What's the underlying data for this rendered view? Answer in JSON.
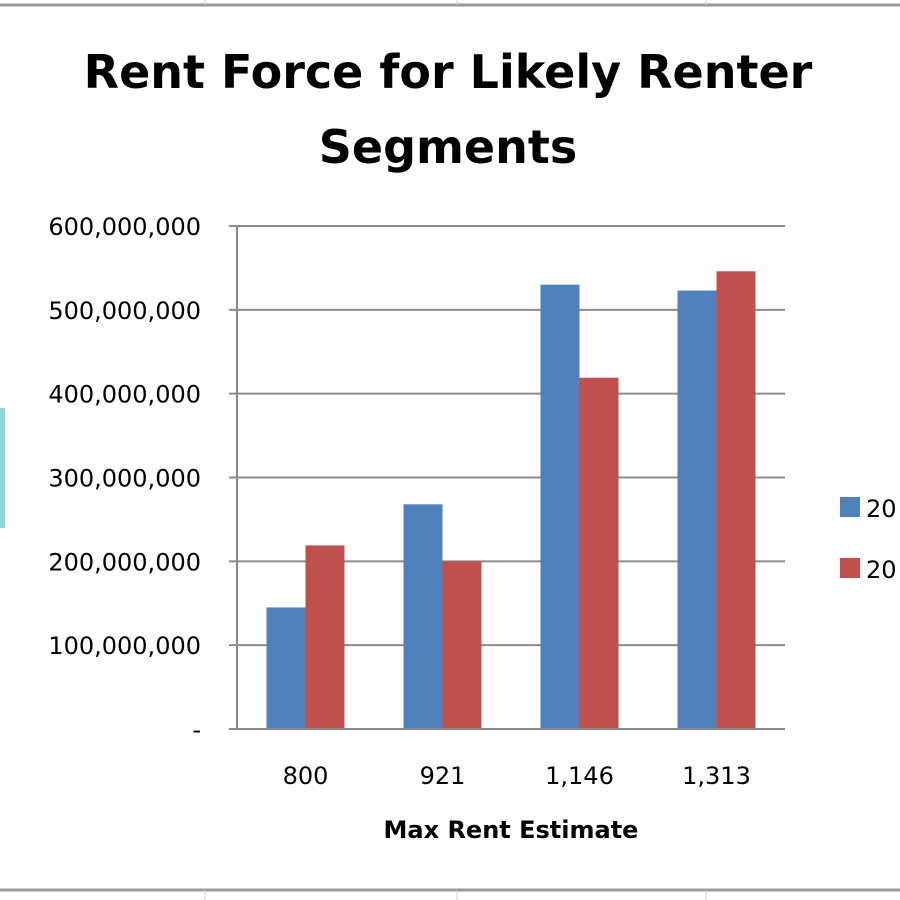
{
  "chart_data": {
    "type": "bar",
    "title": "Rent Force for Likely Renter Segments",
    "title_lines": [
      "Rent Force for Likely Renter",
      "Segments"
    ],
    "xlabel": "Max Rent Estimate",
    "ylabel": "",
    "categories": [
      "800",
      "921",
      "1,146",
      "1,313"
    ],
    "ylim": [
      0,
      600000000
    ],
    "yticks": [
      0,
      100000000,
      200000000,
      300000000,
      400000000,
      500000000,
      600000000
    ],
    "ytick_labels": [
      "-",
      "100,000,000",
      "200,000,000",
      "300,000,000",
      "400,000,000",
      "500,000,000",
      "600,000,000"
    ],
    "grid": true,
    "legend_position": "right",
    "series": [
      {
        "name": "20",
        "color": "#4f81bd",
        "values": [
          145000000,
          268000000,
          530000000,
          523000000
        ]
      },
      {
        "name": "20",
        "color": "#c0504d",
        "values": [
          219000000,
          200000000,
          419000000,
          546000000
        ]
      }
    ]
  }
}
